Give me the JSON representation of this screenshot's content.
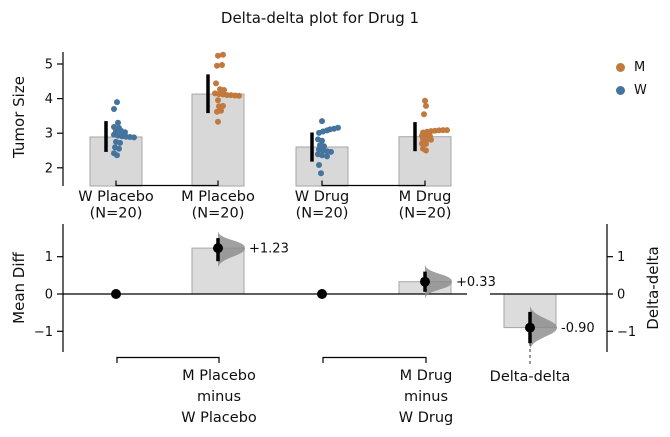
{
  "chart_data": {
    "type": "estimation-plot (bar+swarm raw panel, delta-delta contrast panel)",
    "title": "Delta-delta plot for Drug 1",
    "legend": [
      {
        "label": "M",
        "color": "#c1793e"
      },
      {
        "label": "W",
        "color": "#44749d"
      }
    ],
    "colors": {
      "bar_fill": "#d8d8d8",
      "bar_edge": "#a6a6a6",
      "violin": "#8a8a8a",
      "axis": "#000000"
    },
    "top": {
      "ylabel": "Tumor Size",
      "yticks": [
        2,
        3,
        4,
        5
      ],
      "ylim": [
        1.5,
        5.35
      ],
      "pair_spines": [
        [
          0,
          1
        ],
        [
          2,
          3
        ]
      ],
      "groups": [
        {
          "label": "W Placebo",
          "n_label": "(N=20)",
          "n": 20,
          "color": "W",
          "mean": 2.89,
          "err_lo": 2.46,
          "err_hi": 3.35,
          "points": [
            [
              1,
              3.9
            ],
            [
              -2,
              3.7
            ],
            [
              2,
              3.3
            ],
            [
              -2,
              3.18
            ],
            [
              3,
              3.15
            ],
            [
              0,
              3.06
            ],
            [
              5,
              3.07
            ],
            [
              9,
              3.03
            ],
            [
              -2,
              2.96
            ],
            [
              2,
              2.93
            ],
            [
              6,
              2.91
            ],
            [
              10,
              2.9
            ],
            [
              14,
              2.89
            ],
            [
              18,
              2.88
            ],
            [
              0,
              2.75
            ],
            [
              4,
              2.72
            ],
            [
              -1,
              2.59
            ],
            [
              3,
              2.55
            ],
            [
              -2,
              2.42
            ],
            [
              1,
              2.36
            ]
          ]
        },
        {
          "label": "M Placebo",
          "n_label": "(N=20)",
          "n": 20,
          "color": "M",
          "mean": 4.13,
          "err_lo": 3.58,
          "err_hi": 4.7,
          "points": [
            [
              0,
              5.24
            ],
            [
              5,
              5.27
            ],
            [
              -1,
              4.95
            ],
            [
              4,
              4.97
            ],
            [
              -2,
              4.44
            ],
            [
              2,
              4.27
            ],
            [
              6,
              4.25
            ],
            [
              -3,
              4.15
            ],
            [
              1,
              4.13
            ],
            [
              5,
              4.12
            ],
            [
              9,
              4.1
            ],
            [
              13,
              4.1
            ],
            [
              17,
              4.09
            ],
            [
              21,
              4.08
            ],
            [
              0,
              3.95
            ],
            [
              1,
              3.78
            ],
            [
              5,
              3.79
            ],
            [
              -1,
              3.62
            ],
            [
              3,
              3.65
            ],
            [
              0,
              3.33
            ]
          ]
        },
        {
          "label": "W Drug",
          "n_label": "(N=20)",
          "n": 20,
          "color": "W",
          "mean": 2.6,
          "err_lo": 2.18,
          "err_hi": 3.02,
          "points": [
            [
              0,
              3.35
            ],
            [
              -3,
              3.01
            ],
            [
              1,
              3.05
            ],
            [
              5,
              3.08
            ],
            [
              8,
              3.11
            ],
            [
              12,
              3.13
            ],
            [
              16,
              3.16
            ],
            [
              -4,
              2.82
            ],
            [
              0,
              2.78
            ],
            [
              -2,
              2.65
            ],
            [
              2,
              2.62
            ],
            [
              -3,
              2.53
            ],
            [
              1,
              2.51
            ],
            [
              5,
              2.48
            ],
            [
              9,
              2.46
            ],
            [
              -4,
              2.39
            ],
            [
              0,
              2.36
            ],
            [
              5,
              2.33
            ],
            [
              -3,
              2.08
            ],
            [
              -1,
              1.84
            ]
          ]
        },
        {
          "label": "M Drug",
          "n_label": "(N=20)",
          "n": 20,
          "color": "M",
          "mean": 2.9,
          "err_lo": 2.48,
          "err_hi": 3.32,
          "points": [
            [
              0,
              3.94
            ],
            [
              1,
              3.79
            ],
            [
              -1,
              3.55
            ],
            [
              -2,
              3.02
            ],
            [
              2,
              3.04
            ],
            [
              6,
              3.06
            ],
            [
              10,
              3.07
            ],
            [
              14,
              3.08
            ],
            [
              18,
              3.09
            ],
            [
              22,
              3.09
            ],
            [
              -3,
              2.93
            ],
            [
              1,
              2.92
            ],
            [
              5,
              2.91
            ],
            [
              -2,
              2.83
            ],
            [
              2,
              2.82
            ],
            [
              6,
              2.81
            ],
            [
              -3,
              2.7
            ],
            [
              1,
              2.69
            ],
            [
              -2,
              2.55
            ],
            [
              1,
              2.5
            ]
          ]
        }
      ]
    },
    "bottom": {
      "ylabel_left": "Mean Diff",
      "ylabel_right": "Delta-delta",
      "yticks_left": [
        -1,
        0,
        1
      ],
      "yticks_right": [
        -1,
        0,
        1
      ],
      "axis_break": true,
      "contrasts": [
        {
          "kind": "zero_dot",
          "at": 0,
          "value": 0
        },
        {
          "kind": "delta",
          "at": 1,
          "value": 1.23,
          "ci": [
            0.88,
            1.5
          ],
          "annotation": "+1.23"
        },
        {
          "kind": "zero_dot",
          "at": 2,
          "value": 0
        },
        {
          "kind": "delta",
          "at": 3,
          "value": 0.33,
          "ci": [
            0.06,
            0.6
          ],
          "annotation": "+0.33"
        },
        {
          "kind": "delta",
          "at": 4,
          "value": -0.9,
          "ci": [
            -1.32,
            -0.48
          ],
          "annotation": "-0.90",
          "dashed_stem": true
        }
      ],
      "brackets": [
        {
          "from": 0,
          "to": 1,
          "lines": [
            "M Placebo",
            "minus",
            "W Placebo"
          ]
        },
        {
          "from": 2,
          "to": 3,
          "lines": [
            "M Drug",
            "minus",
            "W Drug"
          ]
        }
      ],
      "dd_label": "Delta-delta"
    }
  }
}
